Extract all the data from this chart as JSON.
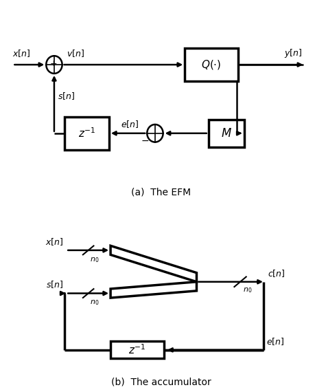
{
  "title_a": "(a)  The EFM",
  "title_b": "(b)  The accumulator",
  "bg_color": "#ffffff",
  "line_color": "#000000",
  "fig_width": 4.6,
  "fig_height": 5.7
}
